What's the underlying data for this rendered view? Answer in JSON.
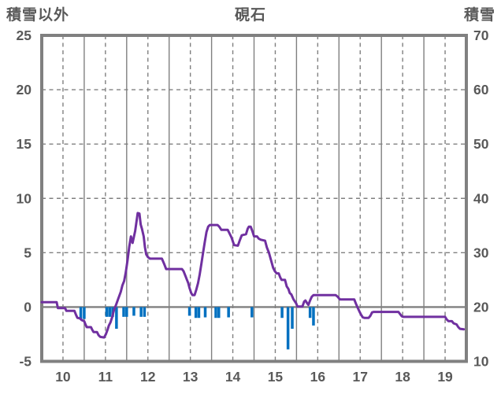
{
  "chart": {
    "title": "硯石",
    "left_axis_title": "積雪以外",
    "right_axis_title": "積雪"
  },
  "chart_data": {
    "type": "line+bar",
    "title": "硯石",
    "left_axis": {
      "label": "積雪以外",
      "range": [
        -5,
        25
      ],
      "ticks": [
        -5,
        0,
        5,
        10,
        15,
        20,
        25
      ],
      "tick_labels": [
        "-5",
        "0",
        "5",
        "10",
        "15",
        "20",
        "25"
      ],
      "gridline_style": "dashed",
      "zero_line": "solid"
    },
    "right_axis": {
      "label": "積雪",
      "range": [
        10,
        70
      ],
      "ticks": [
        10,
        20,
        30,
        40,
        50,
        60,
        70
      ],
      "tick_labels": [
        "10",
        "20",
        "30",
        "40",
        "50",
        "60",
        "70"
      ]
    },
    "x_axis": {
      "range": [
        9.5,
        19.5
      ],
      "ticks": [
        10,
        11,
        12,
        13,
        14,
        15,
        16,
        17,
        18,
        19
      ],
      "tick_labels": [
        "10",
        "11",
        "12",
        "13",
        "14",
        "15",
        "16",
        "17",
        "18",
        "19"
      ],
      "major_gridline_style": "dashed",
      "minor_gridlines": [
        10.5,
        11.5,
        12.5,
        13.5,
        14.5,
        15.5,
        16.5,
        17.5,
        18.5
      ],
      "minor_gridline_style": "solid"
    },
    "series": [
      {
        "name": "purple-line",
        "type": "line",
        "axis": "left",
        "color": "#7030A0",
        "points": [
          [
            9.5,
            0.45
          ],
          [
            9.85,
            0.45
          ],
          [
            9.88,
            -0.1
          ],
          [
            10.05,
            -0.1
          ],
          [
            10.08,
            -0.35
          ],
          [
            10.27,
            -0.35
          ],
          [
            10.31,
            -0.75
          ],
          [
            10.34,
            -1.0
          ],
          [
            10.4,
            -1.05
          ],
          [
            10.44,
            -1.2
          ],
          [
            10.5,
            -1.3
          ],
          [
            10.53,
            -1.6
          ],
          [
            10.56,
            -1.85
          ],
          [
            10.66,
            -1.85
          ],
          [
            10.69,
            -2.1
          ],
          [
            10.72,
            -2.3
          ],
          [
            10.8,
            -2.3
          ],
          [
            10.84,
            -2.6
          ],
          [
            10.88,
            -2.75
          ],
          [
            10.97,
            -2.8
          ],
          [
            11.01,
            -2.5
          ],
          [
            11.05,
            -2.1
          ],
          [
            11.08,
            -1.7
          ],
          [
            11.12,
            -1.4
          ],
          [
            11.16,
            -0.9
          ],
          [
            11.2,
            -0.3
          ],
          [
            11.25,
            0.2
          ],
          [
            11.3,
            0.75
          ],
          [
            11.36,
            1.4
          ],
          [
            11.4,
            2.0
          ],
          [
            11.44,
            2.4
          ],
          [
            11.48,
            3.2
          ],
          [
            11.52,
            4.3
          ],
          [
            11.56,
            5.5
          ],
          [
            11.6,
            6.5
          ],
          [
            11.64,
            5.9
          ],
          [
            11.7,
            7.0
          ],
          [
            11.76,
            8.65
          ],
          [
            11.8,
            8.6
          ],
          [
            11.83,
            7.6
          ],
          [
            11.86,
            7.2
          ],
          [
            11.9,
            6.5
          ],
          [
            11.93,
            5.5
          ],
          [
            11.96,
            4.85
          ],
          [
            12.0,
            4.6
          ],
          [
            12.05,
            4.45
          ],
          [
            12.33,
            4.45
          ],
          [
            12.38,
            4.0
          ],
          [
            12.43,
            3.5
          ],
          [
            12.8,
            3.5
          ],
          [
            12.84,
            3.3
          ],
          [
            12.88,
            2.9
          ],
          [
            12.91,
            2.6
          ],
          [
            12.95,
            2.2
          ],
          [
            12.98,
            1.75
          ],
          [
            13.02,
            1.3
          ],
          [
            13.05,
            1.1
          ],
          [
            13.1,
            1.1
          ],
          [
            13.14,
            1.6
          ],
          [
            13.18,
            2.2
          ],
          [
            13.22,
            3.0
          ],
          [
            13.26,
            4.0
          ],
          [
            13.3,
            5.0
          ],
          [
            13.34,
            6.0
          ],
          [
            13.38,
            6.9
          ],
          [
            13.42,
            7.4
          ],
          [
            13.46,
            7.55
          ],
          [
            13.64,
            7.55
          ],
          [
            13.68,
            7.4
          ],
          [
            13.73,
            7.1
          ],
          [
            13.88,
            7.1
          ],
          [
            13.92,
            6.8
          ],
          [
            13.97,
            6.4
          ],
          [
            14.03,
            5.7
          ],
          [
            14.12,
            5.65
          ],
          [
            14.17,
            6.2
          ],
          [
            14.21,
            6.6
          ],
          [
            14.31,
            6.7
          ],
          [
            14.35,
            7.2
          ],
          [
            14.38,
            7.4
          ],
          [
            14.42,
            7.4
          ],
          [
            14.46,
            7.0
          ],
          [
            14.5,
            6.5
          ],
          [
            14.57,
            6.5
          ],
          [
            14.61,
            6.3
          ],
          [
            14.66,
            6.2
          ],
          [
            14.76,
            6.1
          ],
          [
            14.8,
            5.5
          ],
          [
            14.85,
            5.0
          ],
          [
            14.9,
            4.3
          ],
          [
            14.95,
            3.6
          ],
          [
            14.99,
            3.3
          ],
          [
            15.03,
            3.1
          ],
          [
            15.08,
            3.1
          ],
          [
            15.12,
            2.7
          ],
          [
            15.15,
            2.5
          ],
          [
            15.23,
            2.5
          ],
          [
            15.27,
            1.9
          ],
          [
            15.31,
            1.65
          ],
          [
            15.34,
            1.3
          ],
          [
            15.38,
            1.15
          ],
          [
            15.43,
            0.7
          ],
          [
            15.49,
            0.35
          ],
          [
            15.52,
            0.05
          ],
          [
            15.64,
            0.05
          ],
          [
            15.68,
            0.5
          ],
          [
            15.71,
            0.6
          ],
          [
            15.75,
            0.35
          ],
          [
            15.78,
            0.2
          ],
          [
            15.82,
            0.6
          ],
          [
            15.86,
            0.95
          ],
          [
            15.9,
            1.1
          ],
          [
            16.42,
            1.1
          ],
          [
            16.47,
            0.95
          ],
          [
            16.52,
            0.7
          ],
          [
            16.86,
            0.7
          ],
          [
            16.9,
            0.3
          ],
          [
            16.94,
            -0.05
          ],
          [
            16.98,
            -0.4
          ],
          [
            17.02,
            -0.7
          ],
          [
            17.06,
            -0.95
          ],
          [
            17.1,
            -1.0
          ],
          [
            17.2,
            -1.0
          ],
          [
            17.24,
            -0.8
          ],
          [
            17.28,
            -0.5
          ],
          [
            17.32,
            -0.45
          ],
          [
            17.9,
            -0.45
          ],
          [
            17.94,
            -0.65
          ],
          [
            17.98,
            -0.85
          ],
          [
            18.02,
            -0.9
          ],
          [
            19.0,
            -0.9
          ],
          [
            19.04,
            -1.15
          ],
          [
            19.08,
            -1.3
          ],
          [
            19.16,
            -1.3
          ],
          [
            19.2,
            -1.5
          ],
          [
            19.27,
            -1.6
          ],
          [
            19.31,
            -1.85
          ],
          [
            19.35,
            -2.0
          ],
          [
            19.44,
            -2.05
          ]
        ]
      },
      {
        "name": "blue-bars",
        "type": "bar",
        "axis": "left",
        "color": "#0070C0",
        "bar_width_hours": 0.065,
        "points": [
          [
            10.42,
            -1.1
          ],
          [
            10.5,
            -1.1
          ],
          [
            11.03,
            -0.9
          ],
          [
            11.1,
            -0.9
          ],
          [
            11.17,
            -0.9
          ],
          [
            11.26,
            -2.0
          ],
          [
            11.43,
            -0.9
          ],
          [
            11.5,
            -0.9
          ],
          [
            11.67,
            -0.8
          ],
          [
            11.84,
            -0.9
          ],
          [
            11.92,
            -0.9
          ],
          [
            12.98,
            -0.8
          ],
          [
            13.13,
            -1.0
          ],
          [
            13.2,
            -1.0
          ],
          [
            13.35,
            -0.95
          ],
          [
            13.6,
            -1.0
          ],
          [
            13.67,
            -1.0
          ],
          [
            13.9,
            -0.95
          ],
          [
            14.45,
            -0.95
          ],
          [
            15.16,
            -1.0
          ],
          [
            15.3,
            -3.9
          ],
          [
            15.4,
            -2.0
          ],
          [
            15.82,
            -1.0
          ],
          [
            15.9,
            -1.7
          ]
        ]
      }
    ],
    "colors": {
      "line": "#7030A0",
      "bar": "#0070C0",
      "grid": "#808080",
      "frame": "#808080",
      "text": "#595959",
      "background": "#FFFFFF"
    },
    "legend": "none",
    "grid": "on"
  }
}
